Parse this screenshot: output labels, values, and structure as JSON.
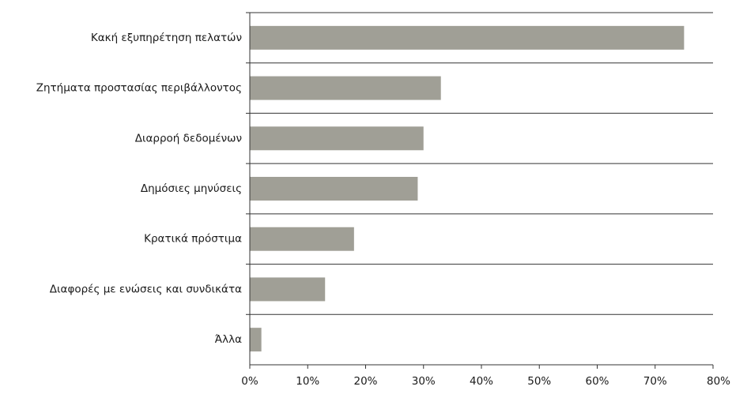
{
  "chart_data": {
    "type": "bar",
    "orientation": "horizontal",
    "categories": [
      "Κακή εξυπηρέτηση πελατών",
      "Ζητήματα προστασίας περιβάλλοντος",
      "Διαρροή δεδομένων",
      "Δημόσιες μηνύσεις",
      "Κρατικά πρόστιμα",
      "Διαφορές με ενώσεις και συνδικάτα",
      "Άλλα"
    ],
    "values": [
      75,
      33,
      30,
      29,
      18,
      13,
      2
    ],
    "title": "",
    "xlabel": "",
    "ylabel": "",
    "xlim": [
      0,
      80
    ],
    "x_ticks": [
      0,
      10,
      20,
      30,
      40,
      50,
      60,
      70,
      80
    ],
    "x_tick_labels": [
      "0%",
      "10%",
      "20%",
      "30%",
      "40%",
      "50%",
      "60%",
      "70%",
      "80%"
    ],
    "grid": "horizontal separators between categories",
    "legend": "none",
    "bar_color": "#a09f96"
  }
}
